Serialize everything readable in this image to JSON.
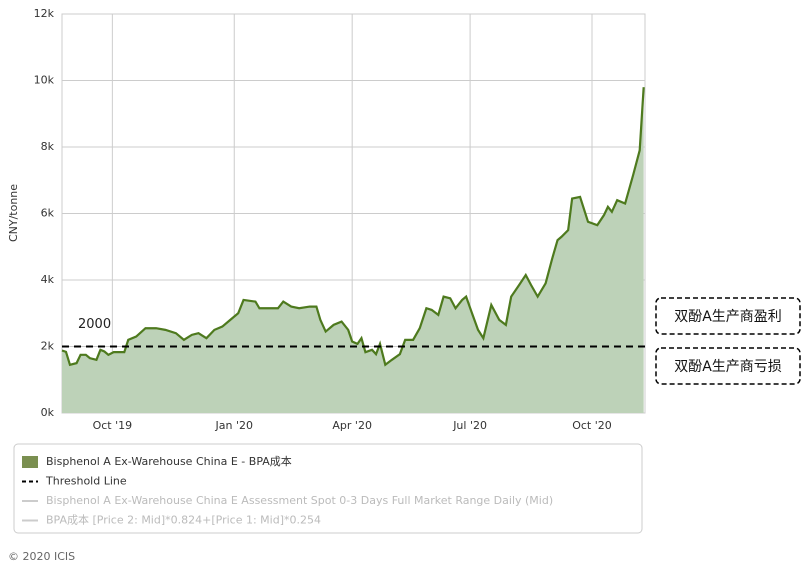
{
  "chart_data": {
    "type": "area",
    "ylabel": "CNY/tonne",
    "x": [
      0,
      3,
      6,
      11,
      14,
      18,
      21,
      26,
      29,
      32,
      35,
      39,
      47,
      50,
      56,
      63,
      71,
      78,
      86,
      92,
      98,
      103,
      109,
      115,
      121,
      127,
      133,
      137,
      146,
      149,
      163,
      167,
      173,
      179,
      187,
      192,
      195,
      199,
      205,
      211,
      216,
      219,
      223,
      226,
      229,
      234,
      237,
      240,
      244,
      249,
      255,
      259,
      265,
      270,
      275,
      279,
      284,
      288,
      293,
      297,
      302,
      305,
      309,
      314,
      318,
      324,
      330,
      335,
      339,
      345,
      350,
      354,
      359,
      365,
      370,
      374,
      377,
      382,
      385,
      391,
      397,
      404,
      409,
      412,
      415,
      419,
      425,
      431,
      436,
      439
    ],
    "series": [
      {
        "name": "Bisphenol A Ex-Warehouse China E - BPA成本",
        "color": "#4e7a1e",
        "fill": "#bdd2b8",
        "swatch": "#7a8f50",
        "values": [
          1880,
          1840,
          1450,
          1500,
          1750,
          1750,
          1650,
          1600,
          1900,
          1850,
          1750,
          1830,
          1830,
          2200,
          2300,
          2550,
          2550,
          2500,
          2400,
          2200,
          2350,
          2400,
          2250,
          2500,
          2600,
          2800,
          3000,
          3400,
          3350,
          3150,
          3150,
          3350,
          3200,
          3150,
          3200,
          3200,
          2800,
          2450,
          2650,
          2750,
          2500,
          2150,
          2080,
          2250,
          1830,
          1900,
          1770,
          2080,
          1450,
          1600,
          1770,
          2200,
          2200,
          2550,
          3150,
          3100,
          2950,
          3500,
          3450,
          3150,
          3400,
          3500,
          3050,
          2500,
          2250,
          3250,
          2800,
          2650,
          3500,
          3850,
          4150,
          3850,
          3500,
          3900,
          4650,
          5200,
          5300,
          5500,
          6450,
          6500,
          5750,
          5650,
          5950,
          6200,
          6050,
          6400,
          6300,
          7150,
          7900,
          9800
        ]
      }
    ],
    "threshold": {
      "name": "Threshold Line",
      "value": 2000
    },
    "inactive_series": [
      "Bisphenol A Ex-Warehouse China E Assessment Spot 0-3 Days Full Market Range Daily (Mid)",
      "BPA成本 [Price 2: Mid]*0.824+[Price 1: Mid]*0.254"
    ],
    "annotations": [
      "双酚A生产商盈利",
      "双酚A生产商亏损"
    ],
    "credit": "© 2020 ICIS",
    "xlim": [
      0,
      440
    ],
    "xticks": [
      {
        "value": 38,
        "label": "Oct '19"
      },
      {
        "value": 130,
        "label": "Jan '20"
      },
      {
        "value": 219,
        "label": "Apr '20"
      },
      {
        "value": 308,
        "label": "Jul '20"
      },
      {
        "value": 400,
        "label": "Oct '20"
      }
    ],
    "ylim": [
      0,
      12000
    ],
    "yticks": [
      {
        "value": 0,
        "label": "0k"
      },
      {
        "value": 2000,
        "label": "2k"
      },
      {
        "value": 4000,
        "label": "4k"
      },
      {
        "value": 6000,
        "label": "6k"
      },
      {
        "value": 8000,
        "label": "8k"
      },
      {
        "value": 10000,
        "label": "10k"
      },
      {
        "value": 12000,
        "label": "12k"
      }
    ],
    "grid": true
  }
}
